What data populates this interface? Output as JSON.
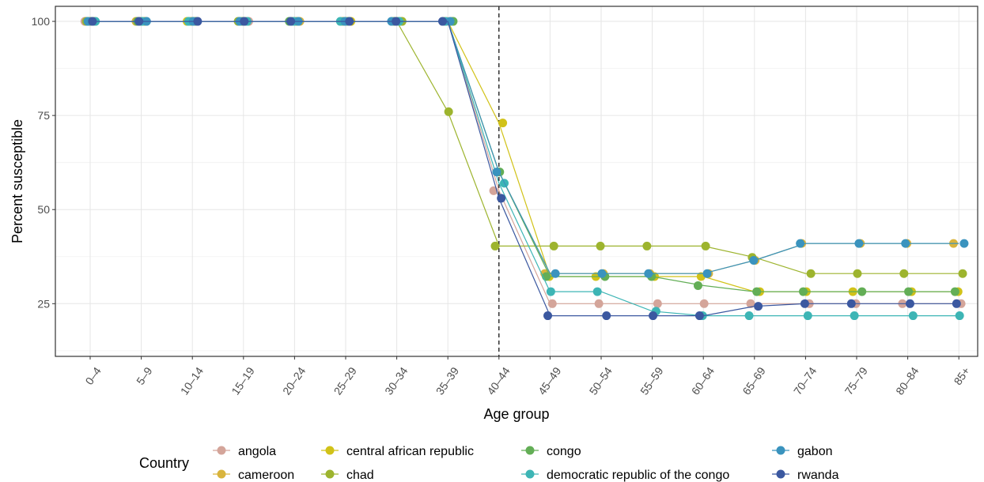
{
  "chart_data": {
    "type": "line",
    "xlabel": "Age group",
    "ylabel": "Percent susceptible",
    "categories": [
      "0–4",
      "5–9",
      "10–14",
      "15–19",
      "20–24",
      "25–29",
      "30–34",
      "35–39",
      "40–44",
      "45–49",
      "50–54",
      "55–59",
      "60–64",
      "65–69",
      "70–74",
      "75–79",
      "80–84",
      "85+"
    ],
    "ylim": [
      11,
      104
    ],
    "yticks": [
      25,
      50,
      75,
      100
    ],
    "vline_category": "40–44",
    "grid": true,
    "legend": {
      "title": "Country",
      "placement": "bottom",
      "entries": [
        "angola",
        "cameroon",
        "central african republic",
        "chad",
        "congo",
        "democratic republic of the congo",
        "gabon",
        "rwanda"
      ]
    },
    "series": [
      {
        "name": "angola",
        "color": "#D4A59A",
        "values": [
          100,
          100,
          100,
          100,
          100,
          100,
          100,
          100,
          55,
          25,
          25,
          25,
          25,
          25,
          25,
          25,
          25,
          25
        ]
      },
      {
        "name": "cameroon",
        "color": "#D9B43C",
        "values": [
          100,
          100,
          100,
          100,
          100,
          100,
          100,
          100,
          60,
          33,
          33,
          33,
          33,
          36.5,
          41,
          41,
          41,
          41
        ]
      },
      {
        "name": "central african republic",
        "color": "#D1C218",
        "values": [
          100,
          100,
          100,
          100,
          100,
          100,
          100,
          100,
          73,
          32.2,
          32.2,
          32.2,
          32.2,
          28.2,
          28.2,
          28.2,
          28.2,
          28.2
        ]
      },
      {
        "name": "chad",
        "color": "#9DB42E",
        "values": [
          100,
          100,
          100,
          100,
          100,
          100,
          100,
          76,
          40.3,
          40.3,
          40.3,
          40.3,
          40.3,
          37.3,
          33,
          33,
          33,
          33
        ]
      },
      {
        "name": "congo",
        "color": "#63AE56",
        "values": [
          100,
          100,
          100,
          100,
          100,
          100,
          100,
          100,
          60,
          32.2,
          32.2,
          32.2,
          29.8,
          28.2,
          28.2,
          28.2,
          28.2,
          28.2
        ]
      },
      {
        "name": "democratic republic of the congo",
        "color": "#3DB5B5",
        "values": [
          100,
          100,
          100,
          100,
          100,
          100,
          100,
          100,
          57,
          28.2,
          28.2,
          23,
          21.8,
          21.8,
          21.8,
          21.8,
          21.8,
          21.8
        ]
      },
      {
        "name": "gabon",
        "color": "#3A93BE",
        "values": [
          100,
          100,
          100,
          100,
          100,
          100,
          100,
          100,
          60,
          33,
          33,
          33,
          33,
          36.5,
          41,
          41,
          41,
          41
        ]
      },
      {
        "name": "rwanda",
        "color": "#3B58A0",
        "values": [
          100,
          100,
          100,
          100,
          100,
          100,
          100,
          100,
          53,
          21.8,
          21.8,
          21.8,
          21.8,
          24.3,
          25,
          25,
          25,
          25
        ]
      }
    ]
  }
}
